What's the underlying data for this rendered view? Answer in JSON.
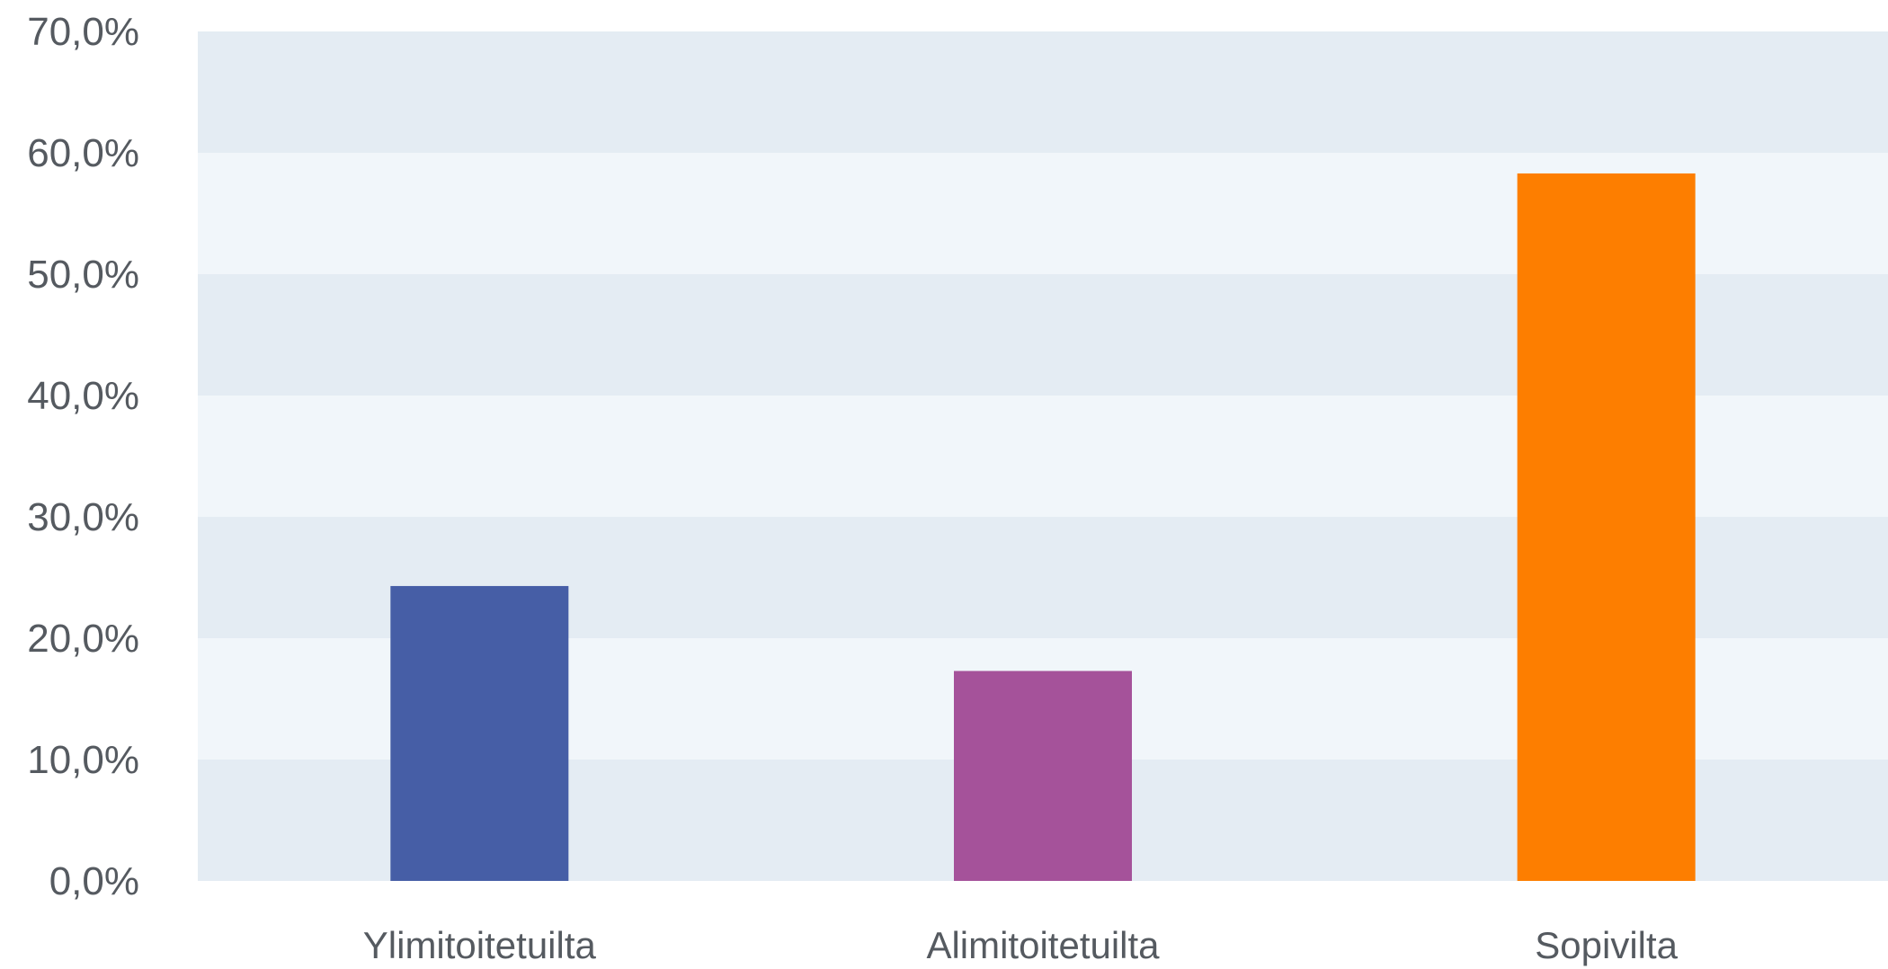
{
  "chart_data": {
    "type": "bar",
    "categories": [
      "Ylimitoitetuilta",
      "Alimitoitetuilta",
      "Sopivilta"
    ],
    "values": [
      24.3,
      17.3,
      58.3
    ],
    "ylim": [
      0,
      70
    ],
    "y_ticks": [
      0,
      10,
      20,
      30,
      40,
      50,
      60,
      70
    ],
    "y_tick_labels": [
      "0,0%",
      "10,0%",
      "20,0%",
      "30,0%",
      "40,0%",
      "50,0%",
      "60,0%",
      "70,0%"
    ],
    "bar_colors": [
      "#465ea6",
      "#a5529a",
      "#fd7e00"
    ],
    "band_colors": [
      "#e4ecf3",
      "#f1f6fa"
    ],
    "grid": false,
    "legend": "none",
    "title": "",
    "xlabel": "",
    "ylabel": ""
  }
}
